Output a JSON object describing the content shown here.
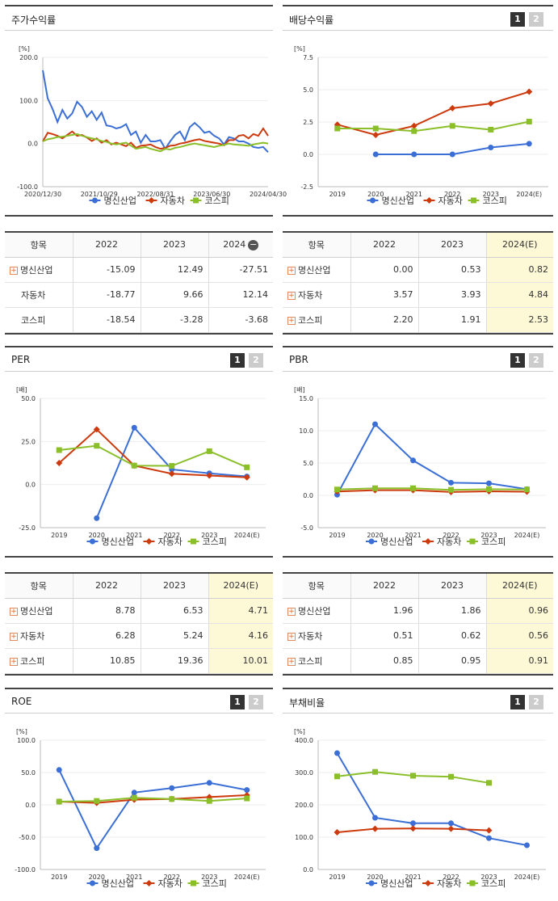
{
  "colors": {
    "company": "#3b6fd6",
    "auto": "#cc3a0e",
    "kospi": "#8bbf2a"
  },
  "legend": {
    "company": "명신산업",
    "auto": "자동차",
    "kospi": "코스피"
  },
  "stock_panel": {
    "title": "주가수익률",
    "chart_data": {
      "type": "line",
      "unit": "[%]",
      "ylim": [
        -100,
        200
      ],
      "yticks": [
        "200.0",
        "100.0",
        "0.0",
        "-100.0"
      ],
      "xticks": [
        "2020/12/30",
        "2021/10/29",
        "2022/08/31",
        "2023/06/30",
        "2024/04/30"
      ],
      "series": [
        {
          "name": "명신산업",
          "values": [
            170,
            105,
            80,
            50,
            78,
            58,
            70,
            97,
            85,
            62,
            75,
            55,
            72,
            42,
            40,
            35,
            38,
            45,
            20,
            28,
            2,
            20,
            5,
            5,
            8,
            -12,
            5,
            20,
            28,
            8,
            38,
            48,
            38,
            25,
            28,
            18,
            12,
            -2,
            15,
            12,
            5,
            5,
            0,
            -8,
            -10,
            -8,
            -20
          ]
        },
        {
          "name": "자동차",
          "values": [
            5,
            25,
            22,
            18,
            12,
            20,
            28,
            18,
            20,
            14,
            6,
            12,
            2,
            8,
            -2,
            2,
            -2,
            -6,
            2,
            -10,
            -5,
            -4,
            -2,
            -8,
            -12,
            -10,
            -5,
            -4,
            0,
            2,
            5,
            8,
            10,
            6,
            4,
            2,
            0,
            -4,
            8,
            8,
            18,
            20,
            12,
            22,
            18,
            35,
            18
          ]
        },
        {
          "name": "코스피",
          "values": [
            5,
            10,
            12,
            15,
            16,
            18,
            20,
            22,
            18,
            15,
            12,
            10,
            6,
            4,
            0,
            -2,
            0,
            2,
            -5,
            -12,
            -10,
            -8,
            -12,
            -15,
            -18,
            -12,
            -14,
            -10,
            -8,
            -5,
            -2,
            0,
            -2,
            -4,
            -6,
            -8,
            -5,
            -3,
            0,
            -2,
            -3,
            -4,
            -5,
            -2,
            0,
            2,
            0
          ]
        }
      ]
    },
    "table": {
      "headers": [
        "항목",
        "2022",
        "2023",
        "2024"
      ],
      "rows": [
        {
          "label": "명신산업",
          "plus": true,
          "v": [
            "-15.09",
            "12.49",
            "-27.51"
          ]
        },
        {
          "label": "자동차",
          "plus": false,
          "v": [
            "-18.77",
            "9.66",
            "12.14"
          ]
        },
        {
          "label": "코스피",
          "plus": false,
          "v": [
            "-18.54",
            "-3.28",
            "-3.68"
          ]
        }
      ]
    }
  },
  "dividend_panel": {
    "title": "배당수익률",
    "chart_data": {
      "type": "line",
      "unit": "[%]",
      "ylim": [
        -2.5,
        7.5
      ],
      "yticks": [
        "7.5",
        "5.0",
        "2.5",
        "0.0",
        "-2.5"
      ],
      "categories": [
        "2019",
        "2020",
        "2021",
        "2022",
        "2023",
        "2024(E)"
      ],
      "series": [
        {
          "name": "명신산업",
          "values": [
            null,
            0.0,
            0.0,
            0.0,
            0.53,
            0.82
          ]
        },
        {
          "name": "자동차",
          "values": [
            2.3,
            1.5,
            2.2,
            3.57,
            3.93,
            4.84
          ]
        },
        {
          "name": "코스피",
          "values": [
            2.0,
            2.0,
            1.8,
            2.2,
            1.91,
            2.53
          ]
        }
      ]
    },
    "table": {
      "headers": [
        "항목",
        "2022",
        "2023",
        "2024(E)"
      ],
      "rows": [
        {
          "label": "명신산업",
          "plus": true,
          "v": [
            "0.00",
            "0.53",
            "0.82"
          ]
        },
        {
          "label": "자동차",
          "plus": true,
          "v": [
            "3.57",
            "3.93",
            "4.84"
          ]
        },
        {
          "label": "코스피",
          "plus": true,
          "v": [
            "2.20",
            "1.91",
            "2.53"
          ]
        }
      ]
    }
  },
  "per_panel": {
    "title": "PER",
    "chart_data": {
      "type": "line",
      "unit": "[배]",
      "ylim": [
        -25,
        50
      ],
      "yticks": [
        "50.0",
        "25.0",
        "0.0",
        "-25.0"
      ],
      "categories": [
        "2019",
        "2020",
        "2021",
        "2022",
        "2023",
        "2024(E)"
      ],
      "series": [
        {
          "name": "명신산업",
          "values": [
            null,
            -19.5,
            33,
            8.78,
            6.53,
            4.71
          ]
        },
        {
          "name": "자동차",
          "values": [
            12.5,
            32,
            11,
            6.28,
            5.24,
            4.16
          ]
        },
        {
          "name": "코스피",
          "values": [
            20,
            22.5,
            11,
            10.85,
            19.36,
            10.01
          ]
        }
      ]
    },
    "table": {
      "headers": [
        "항목",
        "2022",
        "2023",
        "2024(E)"
      ],
      "rows": [
        {
          "label": "명신산업",
          "plus": true,
          "v": [
            "8.78",
            "6.53",
            "4.71"
          ]
        },
        {
          "label": "자동차",
          "plus": true,
          "v": [
            "6.28",
            "5.24",
            "4.16"
          ]
        },
        {
          "label": "코스피",
          "plus": true,
          "v": [
            "10.85",
            "19.36",
            "10.01"
          ]
        }
      ]
    }
  },
  "pbr_panel": {
    "title": "PBR",
    "chart_data": {
      "type": "line",
      "unit": "[배]",
      "ylim": [
        -5,
        15
      ],
      "yticks": [
        "15.0",
        "10.0",
        "5.0",
        "0.0",
        "-5.0"
      ],
      "categories": [
        "2019",
        "2020",
        "2021",
        "2022",
        "2023",
        "2024(E)"
      ],
      "series": [
        {
          "name": "명신산업",
          "values": [
            0.1,
            11,
            5.4,
            1.96,
            1.86,
            0.96
          ]
        },
        {
          "name": "자동차",
          "values": [
            0.6,
            0.8,
            0.8,
            0.51,
            0.62,
            0.56
          ]
        },
        {
          "name": "코스피",
          "values": [
            0.9,
            1.1,
            1.1,
            0.85,
            0.95,
            0.91
          ]
        }
      ]
    },
    "table": {
      "headers": [
        "항목",
        "2022",
        "2023",
        "2024(E)"
      ],
      "rows": [
        {
          "label": "명신산업",
          "plus": true,
          "v": [
            "1.96",
            "1.86",
            "0.96"
          ]
        },
        {
          "label": "자동차",
          "plus": true,
          "v": [
            "0.51",
            "0.62",
            "0.56"
          ]
        },
        {
          "label": "코스피",
          "plus": true,
          "v": [
            "0.85",
            "0.95",
            "0.91"
          ]
        }
      ]
    }
  },
  "roe_panel": {
    "title": "ROE",
    "chart_data": {
      "type": "line",
      "unit": "[%]",
      "ylim": [
        -100,
        100
      ],
      "yticks": [
        "100.0",
        "50.0",
        "0.0",
        "-50.0",
        "-100.0"
      ],
      "categories": [
        "2019",
        "2020",
        "2021",
        "2022",
        "2023",
        "2024(E)"
      ],
      "series": [
        {
          "name": "명신산업",
          "values": [
            54,
            -67,
            19,
            26,
            34,
            23
          ]
        },
        {
          "name": "자동차",
          "values": [
            5,
            3,
            8,
            9,
            12,
            15
          ]
        },
        {
          "name": "코스피",
          "values": [
            5,
            6,
            11,
            9,
            6,
            10
          ]
        }
      ]
    }
  },
  "debt_panel": {
    "title": "부채비율",
    "chart_data": {
      "type": "line",
      "unit": "[%]",
      "ylim": [
        0,
        400
      ],
      "yticks": [
        "400.0",
        "300.0",
        "200.0",
        "100.0",
        "0.0"
      ],
      "categories": [
        "2019",
        "2020",
        "2021",
        "2022",
        "2023",
        "2024(E)"
      ],
      "series": [
        {
          "name": "명신산업",
          "values": [
            360,
            160,
            143,
            143,
            97,
            75
          ]
        },
        {
          "name": "자동차",
          "values": [
            115,
            126,
            127,
            126,
            121,
            null
          ]
        },
        {
          "name": "코스피",
          "values": [
            288,
            302,
            290,
            287,
            268,
            null
          ]
        }
      ]
    }
  },
  "badges": {
    "one": "1",
    "two": "2"
  }
}
